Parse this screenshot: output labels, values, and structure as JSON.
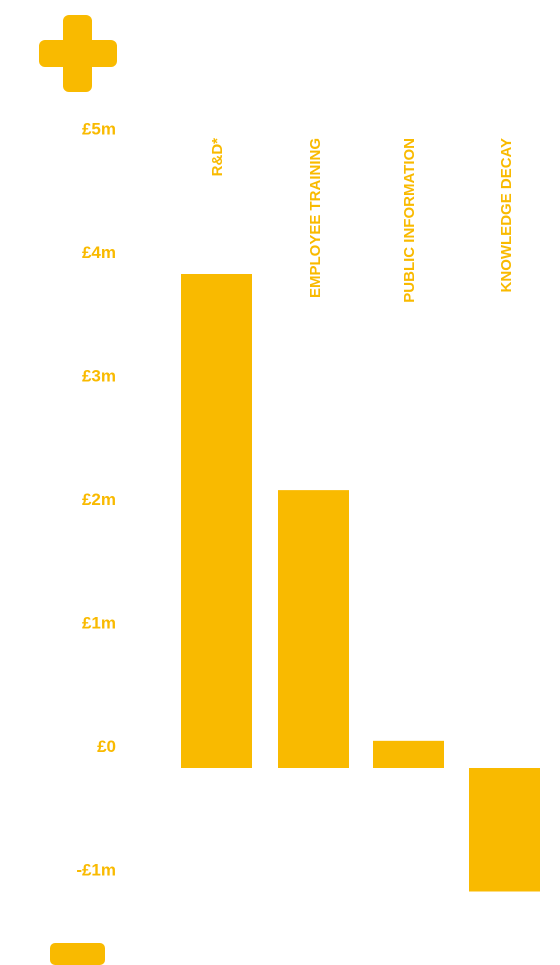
{
  "colors": {
    "accent": "#F9BA00"
  },
  "icons": {
    "top": "plus-icon",
    "bottom": "minus-icon"
  },
  "chart_data": {
    "type": "bar",
    "categories": [
      "R&D*",
      "EMPLOYEE TRAINING",
      "PUBLIC INFORMATION",
      "KNOWLEDGE DECAY"
    ],
    "values": [
      4.0,
      2.25,
      0.22,
      -1.0
    ],
    "unit": "£m",
    "ylim": [
      -1,
      5
    ],
    "yticks": [
      5,
      4,
      3,
      2,
      1,
      0,
      -1
    ],
    "ytick_labels": [
      "£5m",
      "£4m",
      "£3m",
      "£2m",
      "£1m",
      "£0",
      "-£1m"
    ],
    "grid": false,
    "legend": "none"
  }
}
